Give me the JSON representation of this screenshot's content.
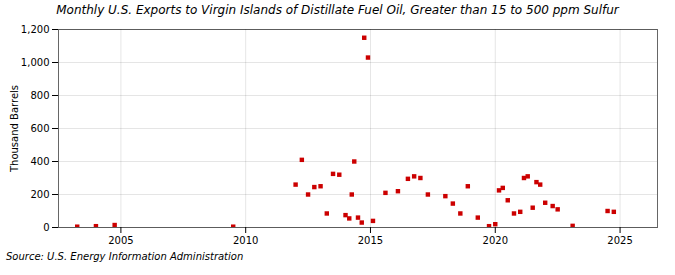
{
  "chart_data": {
    "type": "scatter",
    "title": "Monthly U.S. Exports to Virgin Islands of Distillate Fuel Oil, Greater than 15 to 500 ppm Sulfur",
    "ylabel": "Thousand Barrels",
    "annotations": [
      "Source: U.S. Energy Information Administration"
    ],
    "x": [
      2003.25,
      2004.0,
      2004.75,
      2009.5,
      2012.0,
      2012.25,
      2012.5,
      2012.75,
      2013.0,
      2013.25,
      2013.5,
      2013.75,
      2014.0,
      2014.15,
      2014.25,
      2014.35,
      2014.5,
      2014.65,
      2014.75,
      2014.9,
      2015.1,
      2015.6,
      2016.1,
      2016.5,
      2016.75,
      2017.0,
      2017.3,
      2018.0,
      2018.3,
      2018.6,
      2018.9,
      2019.3,
      2019.75,
      2020.0,
      2020.15,
      2020.3,
      2020.5,
      2020.75,
      2021.0,
      2021.15,
      2021.3,
      2021.5,
      2021.65,
      2021.8,
      2022.0,
      2022.3,
      2022.5,
      2023.1,
      2024.5,
      2024.75
    ],
    "values": [
      5,
      8,
      15,
      5,
      260,
      410,
      200,
      245,
      250,
      85,
      325,
      320,
      75,
      55,
      200,
      400,
      60,
      30,
      1150,
      1030,
      40,
      210,
      220,
      295,
      310,
      300,
      200,
      190,
      145,
      85,
      250,
      60,
      8,
      20,
      225,
      240,
      165,
      85,
      95,
      300,
      310,
      120,
      275,
      260,
      150,
      130,
      110,
      10,
      100,
      95
    ],
    "color": "#cc0000",
    "marker": "square",
    "xlim": [
      2002.5,
      2026.5
    ],
    "xticks": [
      2005,
      2010,
      2015,
      2020,
      2025
    ],
    "ylim": [
      0,
      1200
    ],
    "yticks": [
      0,
      200,
      400,
      600,
      800,
      {
        "value": 1000,
        "label": "1,000"
      },
      {
        "value": 1200,
        "label": "1,200"
      }
    ],
    "grid": true
  }
}
